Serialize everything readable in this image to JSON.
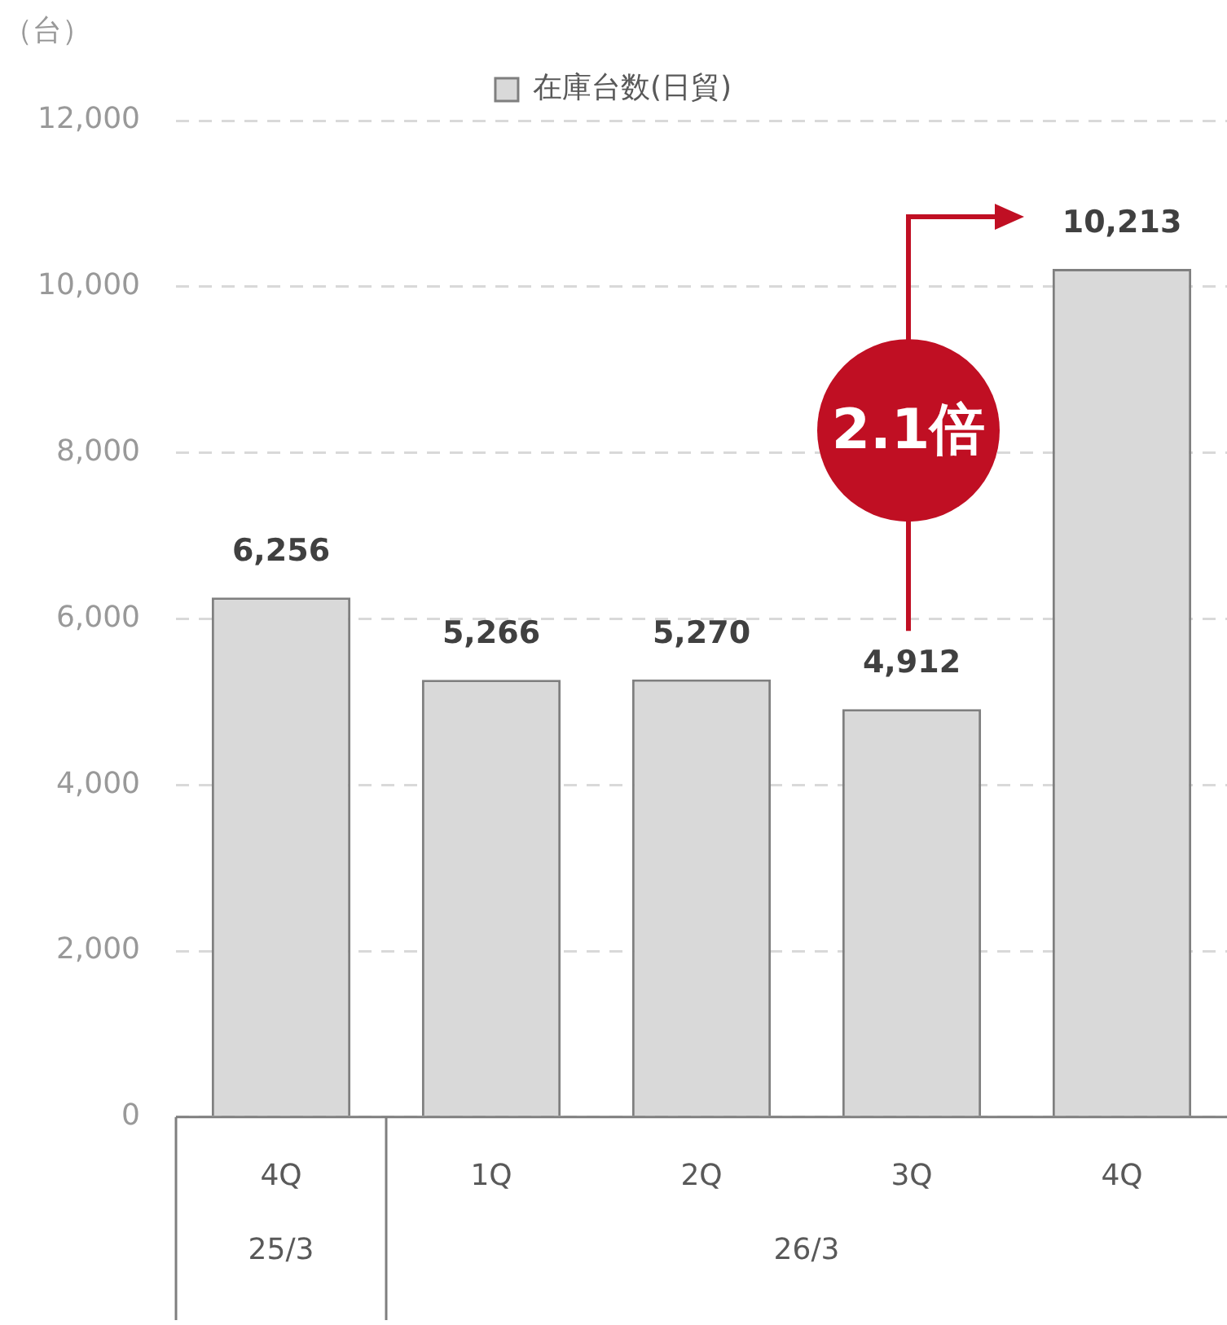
{
  "chart_data": {
    "type": "bar",
    "ylabel": "（台）",
    "categories": [
      "4Q",
      "1Q",
      "2Q",
      "3Q",
      "4Q"
    ],
    "series": [
      {
        "name": "在庫台数(日貿)",
        "color": "#d9d9d9",
        "values": [
          6256,
          5266,
          5270,
          4912,
          10213
        ],
        "value_labels": [
          "6,256",
          "5,266",
          "5,270",
          "4,912",
          "10,213"
        ]
      }
    ],
    "ylim": [
      0,
      12000
    ],
    "yticks": [
      0,
      {
        "value": 2000,
        "label": "2,000"
      },
      {
        "value": 4000,
        "label": "4,000"
      },
      {
        "value": 6000,
        "label": "6,000"
      },
      {
        "value": 8000,
        "label": "8,000"
      },
      {
        "value": 10000,
        "label": "10,000"
      },
      {
        "value": 12000,
        "label": "12,000"
      }
    ],
    "grid": "y",
    "legend": "top",
    "annotations": [
      "2.1倍",
      "25/3",
      "26/3"
    ]
  }
}
